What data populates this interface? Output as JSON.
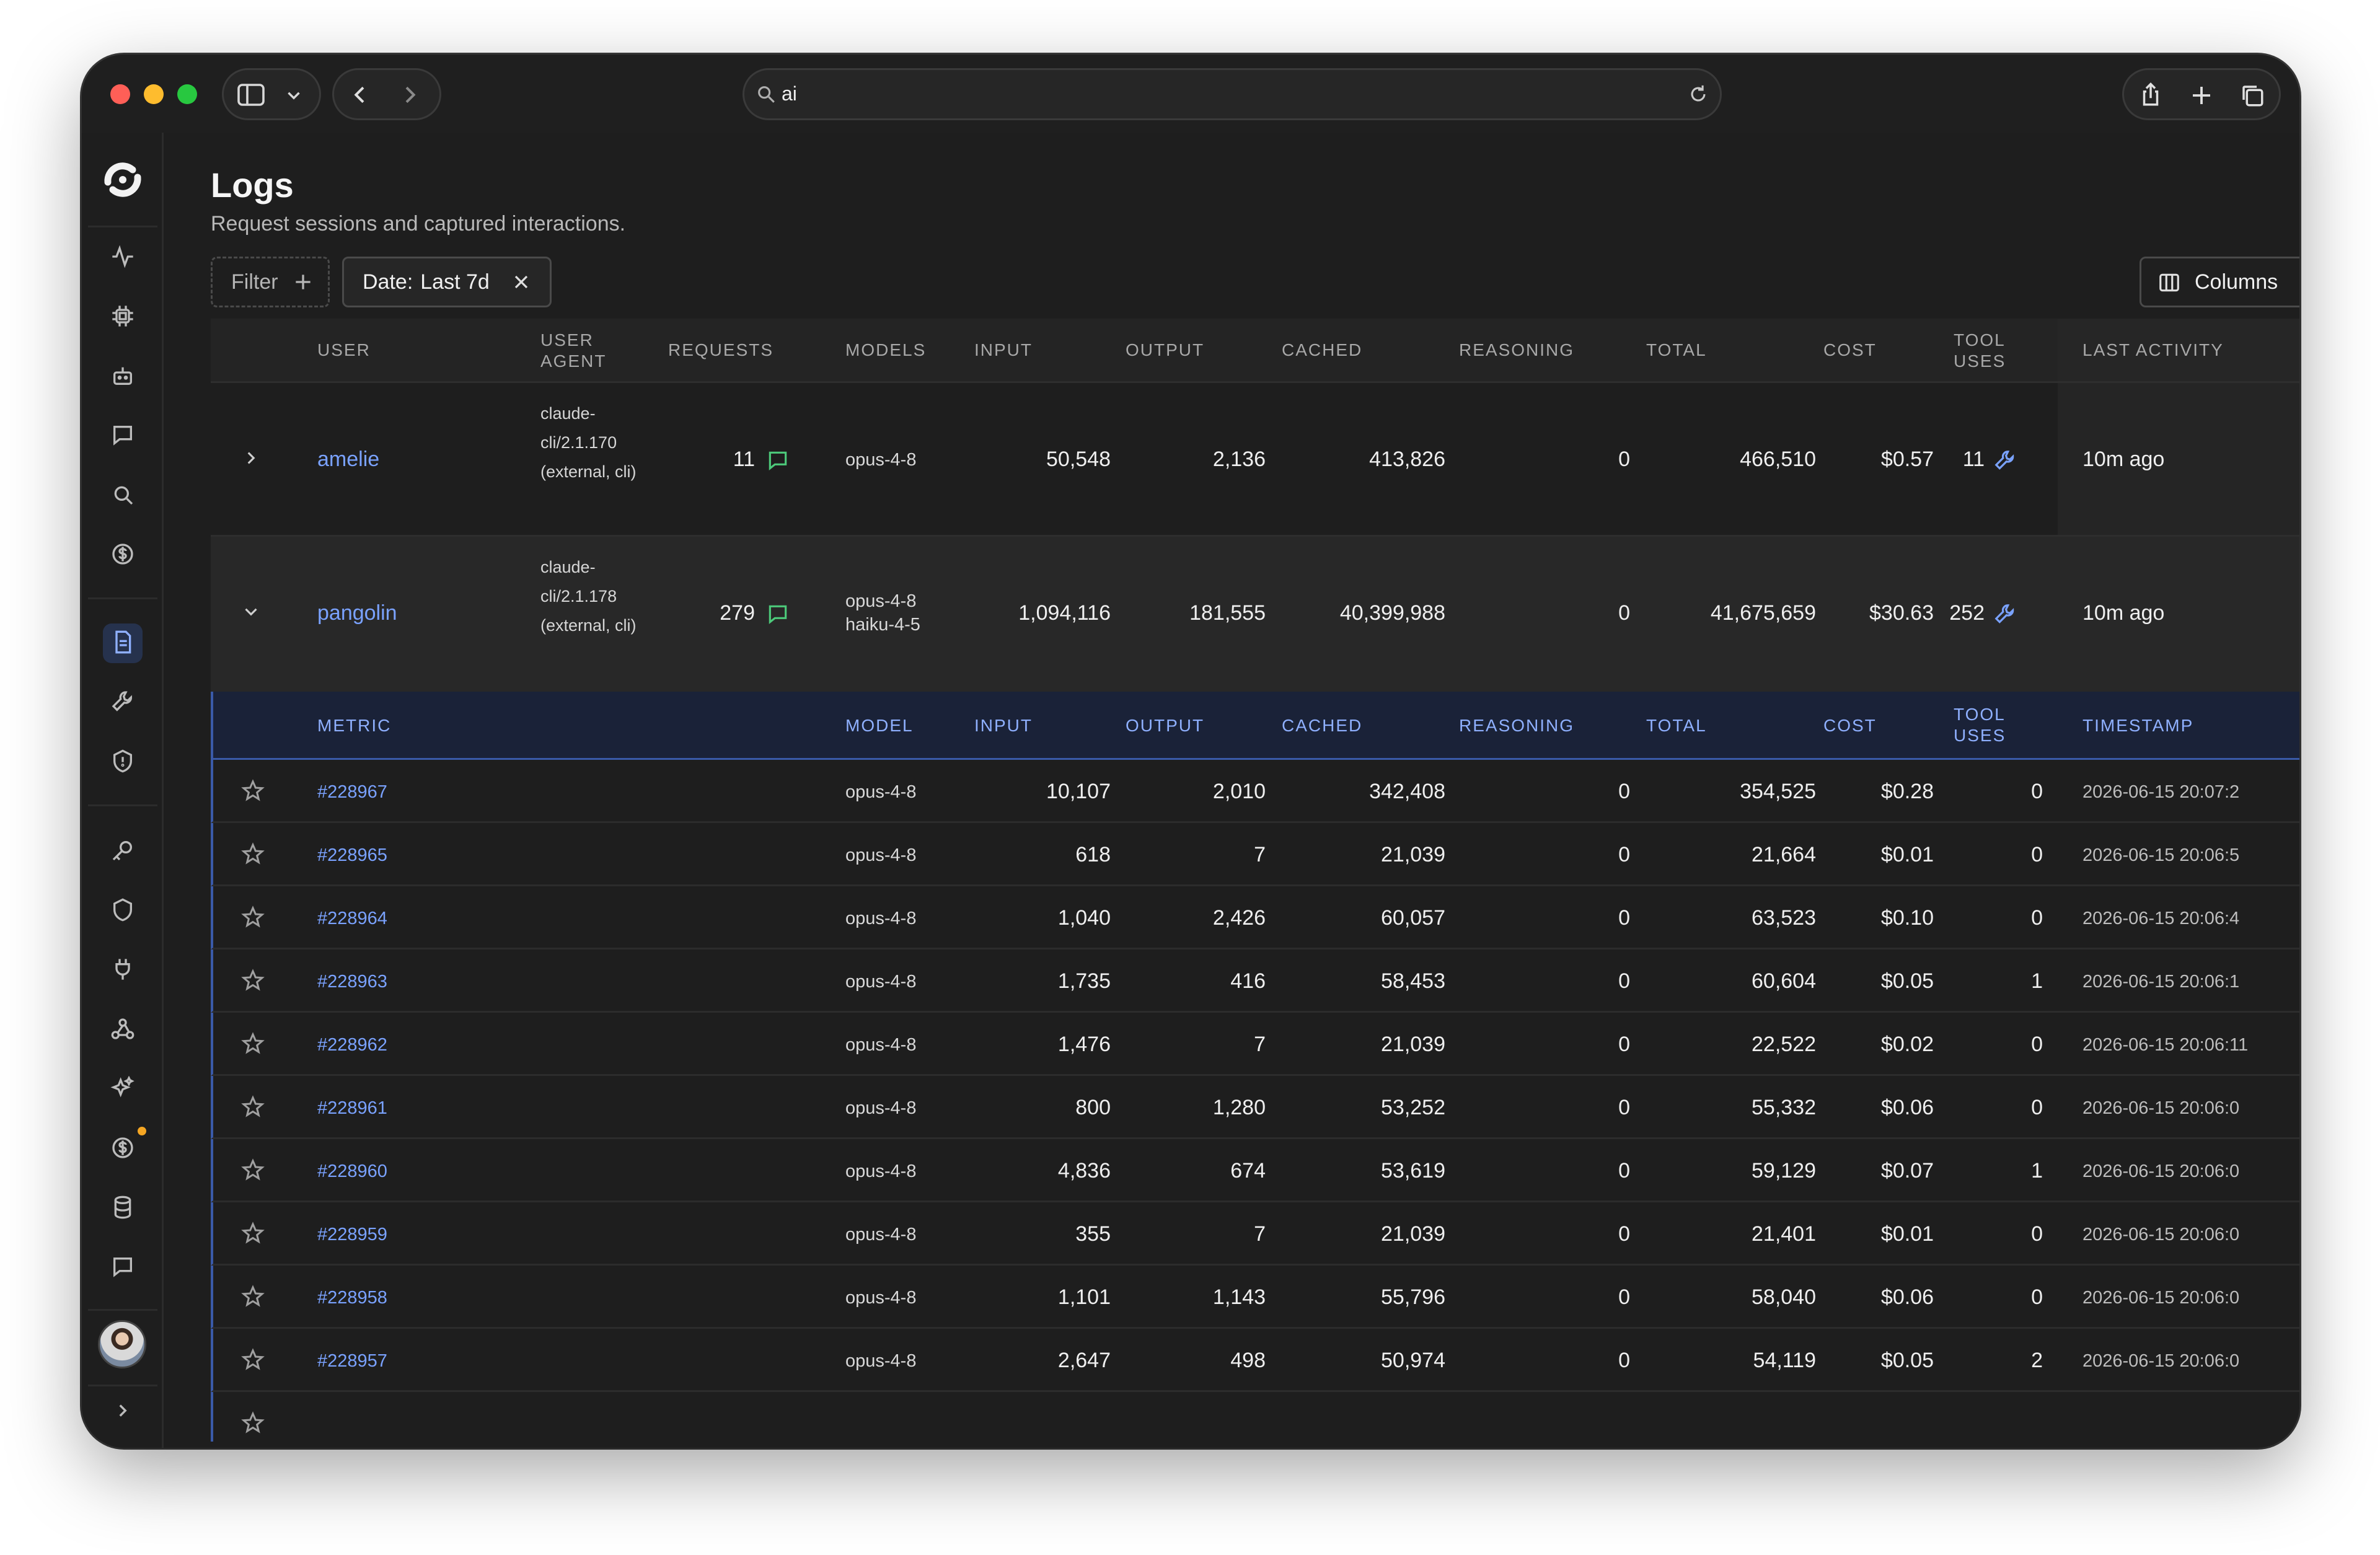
{
  "browser": {
    "address": "ai"
  },
  "page": {
    "title": "Logs",
    "subtitle": "Request sessions and captured interactions."
  },
  "toolbar": {
    "filter_label": "Filter",
    "date_label": "Date:",
    "date_value": "Last 7d",
    "columns_label": "Columns"
  },
  "table": {
    "headers": {
      "user": "USER",
      "user_agent_1": "USER",
      "user_agent_2": "AGENT",
      "requests": "REQUESTS",
      "models": "MODELS",
      "input": "INPUT",
      "output": "OUTPUT",
      "cached": "CACHED",
      "reasoning": "REASONING",
      "total": "TOTAL",
      "cost": "COST",
      "tool_uses_1": "TOOL",
      "tool_uses_2": "USES",
      "last_activity": "LAST ACTIVITY"
    },
    "sessions": [
      {
        "user": "amelie",
        "user_agent": "claude-cli/2.1.170 (external, cli)",
        "requests": "11",
        "models": [
          "opus-4-8"
        ],
        "input": "50,548",
        "output": "2,136",
        "cached": "413,826",
        "reasoning": "0",
        "total": "466,510",
        "cost": "$0.57",
        "tool_uses": "11",
        "last_activity": "10m ago"
      },
      {
        "user": "pangolin",
        "user_agent": "claude-cli/2.1.178 (external, cli)",
        "requests": "279",
        "models": [
          "opus-4-8",
          "haiku-4-5"
        ],
        "input": "1,094,116",
        "output": "181,555",
        "cached": "40,399,988",
        "reasoning": "0",
        "total": "41,675,659",
        "cost": "$30.63",
        "tool_uses": "252",
        "last_activity": "10m ago"
      }
    ],
    "sub_headers": {
      "metric": "METRIC",
      "model": "MODEL",
      "input": "INPUT",
      "output": "OUTPUT",
      "cached": "CACHED",
      "reasoning": "REASONING",
      "total": "TOTAL",
      "cost": "COST",
      "tool_uses_1": "TOOL",
      "tool_uses_2": "USES",
      "timestamp": "TIMESTAMP"
    },
    "metrics": [
      {
        "id": "#228967",
        "model": "opus-4-8",
        "input": "10,107",
        "output": "2,010",
        "cached": "342,408",
        "reasoning": "0",
        "total": "354,525",
        "cost": "$0.28",
        "tool_uses": "0",
        "timestamp": "2026-06-15 20:07:2"
      },
      {
        "id": "#228965",
        "model": "opus-4-8",
        "input": "618",
        "output": "7",
        "cached": "21,039",
        "reasoning": "0",
        "total": "21,664",
        "cost": "$0.01",
        "tool_uses": "0",
        "timestamp": "2026-06-15 20:06:5"
      },
      {
        "id": "#228964",
        "model": "opus-4-8",
        "input": "1,040",
        "output": "2,426",
        "cached": "60,057",
        "reasoning": "0",
        "total": "63,523",
        "cost": "$0.10",
        "tool_uses": "0",
        "timestamp": "2026-06-15 20:06:4"
      },
      {
        "id": "#228963",
        "model": "opus-4-8",
        "input": "1,735",
        "output": "416",
        "cached": "58,453",
        "reasoning": "0",
        "total": "60,604",
        "cost": "$0.05",
        "tool_uses": "1",
        "timestamp": "2026-06-15 20:06:1"
      },
      {
        "id": "#228962",
        "model": "opus-4-8",
        "input": "1,476",
        "output": "7",
        "cached": "21,039",
        "reasoning": "0",
        "total": "22,522",
        "cost": "$0.02",
        "tool_uses": "0",
        "timestamp": "2026-06-15 20:06:11"
      },
      {
        "id": "#228961",
        "model": "opus-4-8",
        "input": "800",
        "output": "1,280",
        "cached": "53,252",
        "reasoning": "0",
        "total": "55,332",
        "cost": "$0.06",
        "tool_uses": "0",
        "timestamp": "2026-06-15 20:06:0"
      },
      {
        "id": "#228960",
        "model": "opus-4-8",
        "input": "4,836",
        "output": "674",
        "cached": "53,619",
        "reasoning": "0",
        "total": "59,129",
        "cost": "$0.07",
        "tool_uses": "1",
        "timestamp": "2026-06-15 20:06:0"
      },
      {
        "id": "#228959",
        "model": "opus-4-8",
        "input": "355",
        "output": "7",
        "cached": "21,039",
        "reasoning": "0",
        "total": "21,401",
        "cost": "$0.01",
        "tool_uses": "0",
        "timestamp": "2026-06-15 20:06:0"
      },
      {
        "id": "#228958",
        "model": "opus-4-8",
        "input": "1,101",
        "output": "1,143",
        "cached": "55,796",
        "reasoning": "0",
        "total": "58,040",
        "cost": "$0.06",
        "tool_uses": "0",
        "timestamp": "2026-06-15 20:06:0"
      },
      {
        "id": "#228957",
        "model": "opus-4-8",
        "input": "2,647",
        "output": "498",
        "cached": "50,974",
        "reasoning": "0",
        "total": "54,119",
        "cost": "$0.05",
        "tool_uses": "2",
        "timestamp": "2026-06-15 20:06:0"
      }
    ]
  },
  "colors": {
    "accent": "#7aa2ff",
    "window_bg": "#1e1e1e",
    "badge_dot": "#f5a623"
  }
}
